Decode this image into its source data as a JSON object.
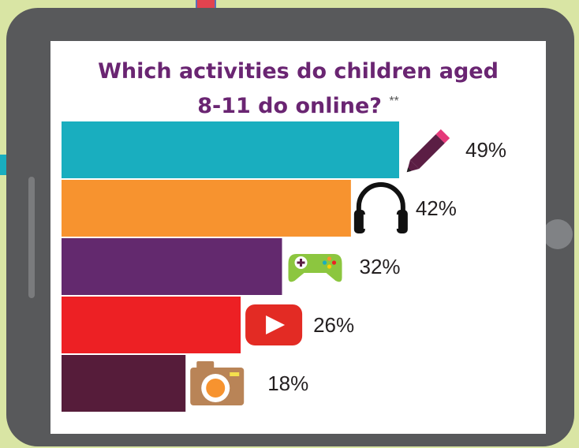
{
  "title_line1": "Which activities do children aged",
  "title_line2": "8-11 do online?",
  "title_note": "**",
  "chart_data": {
    "type": "bar",
    "orientation": "horizontal",
    "title": "Which activities do children aged 8-11 do online? **",
    "categories": [
      "",
      "",
      "",
      "",
      ""
    ],
    "icons": [
      "pencil-icon",
      "headphones-icon",
      "gamepad-icon",
      "video-play-icon",
      "camera-icon"
    ],
    "values": [
      49,
      42,
      32,
      26,
      18
    ],
    "labels": [
      "49%",
      "42%",
      "32%",
      "26%",
      "18%"
    ],
    "colors": [
      "#19aebf",
      "#f7932f",
      "#63296e",
      "#ed2024",
      "#561c3a"
    ],
    "xlim": [
      0,
      100
    ],
    "grid": false,
    "legend": "none"
  }
}
